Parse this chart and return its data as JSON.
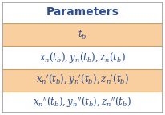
{
  "title": "Parameters",
  "rows": [
    {
      "text": "$t_b$",
      "bg": "#f9cfa0"
    },
    {
      "text": "$x_n(t_b),y_n(t_b),z_n(t_b)$",
      "bg": "#ffffff"
    },
    {
      "text": "$x_n{'}(t_b),y_n{'}(t_b),z_n{'}(t_b)$",
      "bg": "#f9cfa0"
    },
    {
      "text": "$x_n{''}(t_b),y_n{''}(t_b),z_n{''}(t_b)$",
      "bg": "#ffffff"
    }
  ],
  "header_bg": "#ffffff",
  "header_text_color": "#2e4e8e",
  "row_text_color": "#2e4e8e",
  "border_color": "#c8a060",
  "outer_border_color": "#a0a0a0",
  "title_fontsize": 10,
  "row_fontsize": 8.5
}
